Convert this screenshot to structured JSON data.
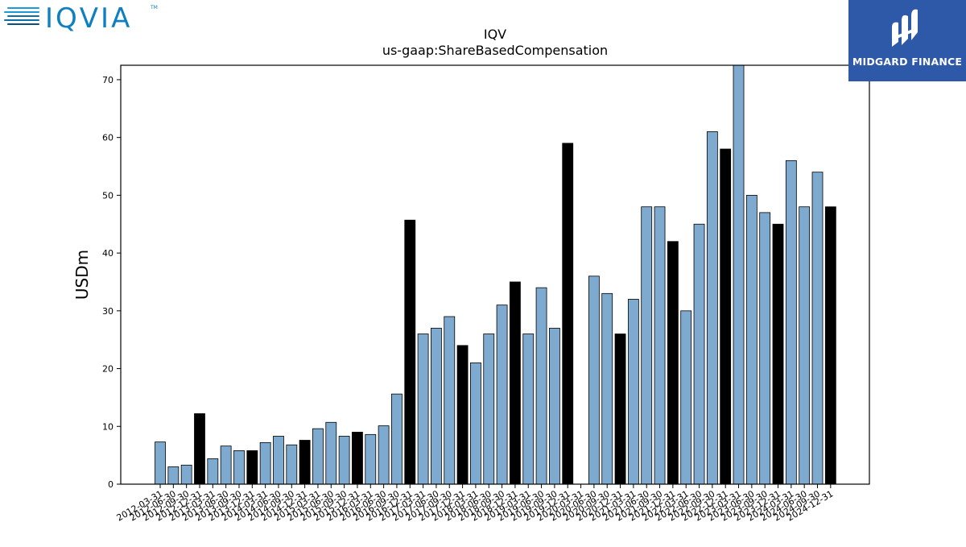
{
  "logos": {
    "left_brand": "IQVIA",
    "left_tm": "TM",
    "right_brand": "MIDGARD FINANCE"
  },
  "colors": {
    "regular_bar": "#7eaacf",
    "year_end_bar": "#000000",
    "axis": "#000000",
    "background": "#ffffff"
  },
  "chart_data": {
    "type": "bar",
    "title": "IQV",
    "subtitle": "us-gaap:ShareBasedCompensation",
    "xlabel": "",
    "ylabel": "USDm",
    "ylim": [
      0,
      72.5
    ],
    "yticks": [
      0,
      10,
      20,
      30,
      40,
      50,
      60,
      70
    ],
    "grid": false,
    "legend": "none",
    "categories": [
      "2012-03-31",
      "2012-06-30",
      "2012-09-30",
      "2012-12-31",
      "2013-03-31",
      "2013-06-30",
      "2013-09-30",
      "2013-12-31",
      "2014-03-31",
      "2014-06-30",
      "2014-09-30",
      "2014-12-31",
      "2015-03-31",
      "2015-06-30",
      "2015-09-30",
      "2015-12-31",
      "2016-03-31",
      "2016-06-30",
      "2016-09-30",
      "2016-12-31",
      "2017-03-31",
      "2017-06-30",
      "2017-09-30",
      "2017-12-31",
      "2018-03-31",
      "2018-06-30",
      "2018-09-30",
      "2018-12-31",
      "2019-03-31",
      "2019-06-30",
      "2019-09-30",
      "2019-12-31",
      "2020-03-31",
      "2020-06-30",
      "2020-09-30",
      "2020-12-31",
      "2021-03-31",
      "2021-06-30",
      "2021-09-30",
      "2021-12-31",
      "2022-03-31",
      "2022-06-30",
      "2022-09-30",
      "2022-12-31",
      "2023-03-31",
      "2023-06-30",
      "2023-09-30",
      "2023-12-31",
      "2024-03-31",
      "2024-06-30",
      "2024-09-30",
      "2024-12-31"
    ],
    "tick_labels": [
      "2012-03-31",
      "2012-06-30",
      "2012-09-30",
      "2012-12-31",
      "2013-03-31",
      "2013-06-30",
      "2013-09-30",
      "2013-12-31",
      "2014-03-31",
      "2014-06-30",
      "2014-09-30",
      "2014-12-31",
      "2015-03-31",
      "2015-06-30",
      "2015-09-30",
      "2015-12-31",
      "2016-03-31",
      "2016-06-30",
      "2016-09-30",
      "2016-12-31",
      "2017-03-31",
      "2017-06-30",
      "2017-09-30",
      "2017-12-31",
      "2018-03-31",
      "2018-06-30",
      "2018-09-30",
      "2018-12-31",
      "2019-03-31",
      "2019-06-30",
      "2019-09-30",
      "2019-12-31",
      "2020-03-31",
      "2020-06-30",
      "2020-09-30",
      "2020-12-31",
      "2021-03-31",
      "2021-06-30",
      "2021-09-30",
      "2021-12-31",
      "2022-03-31",
      "2022-06-30",
      "2022-09-30",
      "2022-12-31",
      "2023-03-31",
      "2023-06-30",
      "2023-09-30",
      "2023-12-31",
      "2024-03-31",
      "2024-06-30",
      "2024-09-30",
      "2024-12-31"
    ],
    "values": [
      7.3,
      3.0,
      3.3,
      12.2,
      4.4,
      6.6,
      5.8,
      5.8,
      7.2,
      8.3,
      6.8,
      7.6,
      9.6,
      10.7,
      8.3,
      9.0,
      8.6,
      10.1,
      15.6,
      45.7,
      26.0,
      27.0,
      29.0,
      24.0,
      21.0,
      26.0,
      31.0,
      35.0,
      26.0,
      34.0,
      27.0,
      59.0,
      null,
      36.0,
      33.0,
      26.0,
      32.0,
      48.0,
      48.0,
      42.0,
      30.0,
      45.0,
      61.0,
      58.0,
      73.0,
      50.0,
      47.0,
      45.0,
      56.0,
      48.0,
      54.0,
      48.0
    ],
    "highlight": [
      false,
      false,
      false,
      true,
      false,
      false,
      false,
      true,
      false,
      false,
      false,
      true,
      false,
      false,
      false,
      true,
      false,
      false,
      false,
      true,
      false,
      false,
      false,
      true,
      false,
      false,
      false,
      true,
      false,
      false,
      false,
      true,
      false,
      false,
      false,
      true,
      false,
      false,
      false,
      true,
      false,
      false,
      false,
      true,
      false,
      false,
      false,
      true,
      false,
      false,
      false,
      true
    ]
  }
}
